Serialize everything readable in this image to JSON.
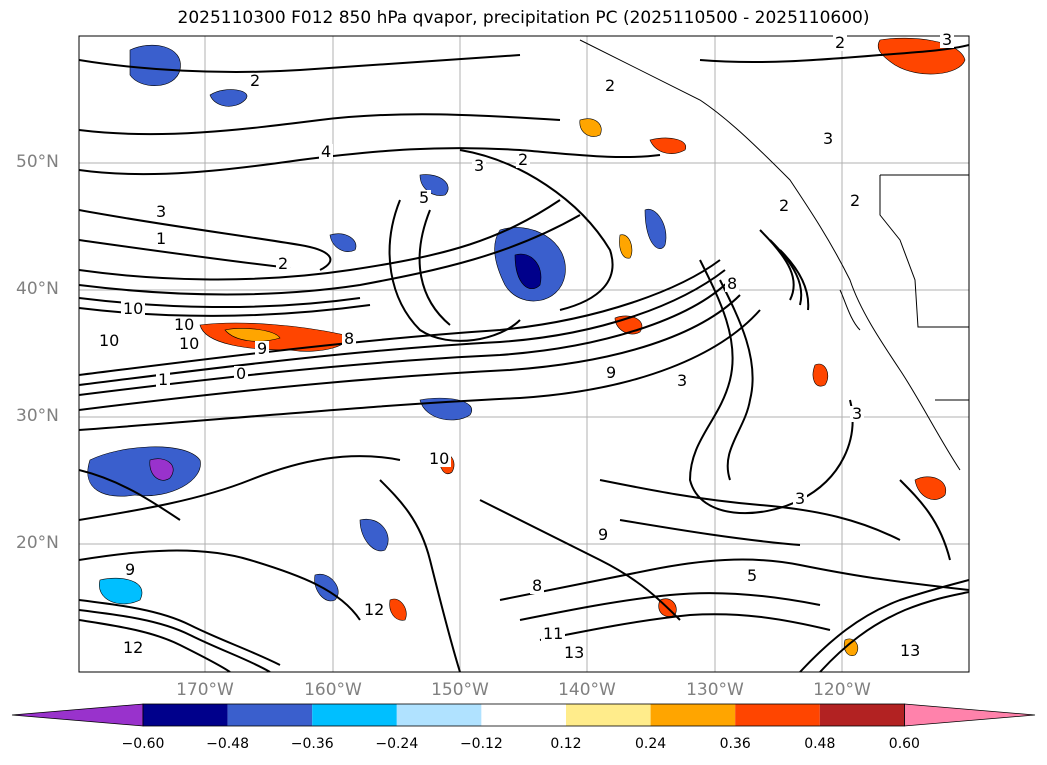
{
  "title": "2025110300 F012 850 hPa qvapor, precipitation PC (2025110500 - 2025110600)",
  "map": {
    "lat_labels": [
      "50°N",
      "40°N",
      "30°N",
      "20°N"
    ],
    "lon_labels": [
      "170°W",
      "160°W",
      "150°W",
      "140°W",
      "130°W",
      "120°W"
    ],
    "contour_labels": [
      "2",
      "2",
      "4",
      "3",
      "2",
      "3",
      "1",
      "2",
      "3",
      "5",
      "10",
      "10",
      "10",
      "10",
      "9",
      "8",
      "9",
      "0",
      "1",
      "8",
      "9",
      "3",
      "3",
      "3",
      "13",
      "12",
      "12",
      "11",
      "13",
      "10",
      "9",
      "8",
      "5",
      "2",
      "3",
      "2",
      "2"
    ]
  },
  "colorbar": {
    "tick_labels": [
      "−0.60",
      "−0.48",
      "−0.36",
      "−0.24",
      "−0.12",
      "0.12",
      "0.24",
      "0.36",
      "0.48",
      "0.60"
    ],
    "colors": [
      "#9932CC",
      "#00008B",
      "#3A5FCD",
      "#00BFFF",
      "#B0E2FF",
      "#FFFFFF",
      "#FFEC8B",
      "#FFA500",
      "#FF4500",
      "#B22222",
      "#FF82AB"
    ]
  }
}
